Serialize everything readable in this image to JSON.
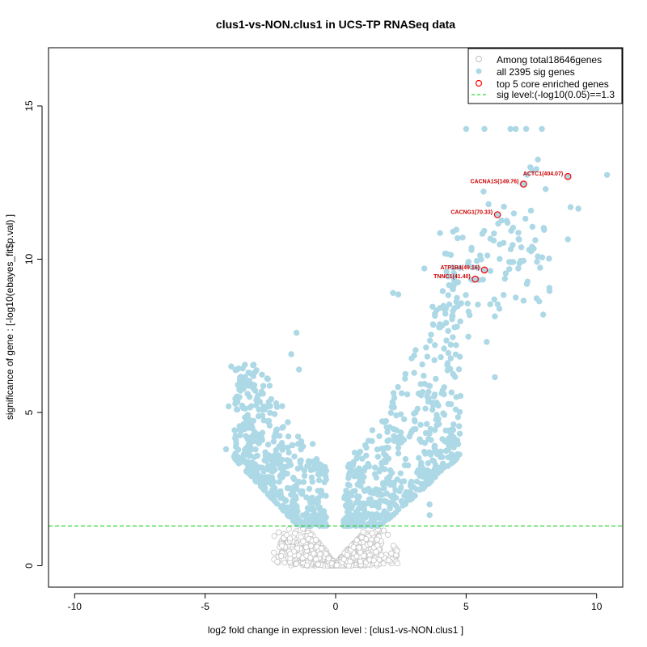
{
  "chart_data": {
    "type": "scatter",
    "title": "clus1-vs-NON.clus1 in UCS-TP RNASeq data",
    "xlabel": "log2 fold change in expression level : [clus1-vs-NON.clus1 ]",
    "ylabel": "significance of gene : [-log10(ebayes_fit$p.val) ]",
    "xlim": [
      -11,
      11
    ],
    "ylim": [
      -0.7,
      16.9
    ],
    "x_ticks": [
      -10,
      -5,
      0,
      5,
      10
    ],
    "y_ticks": [
      0,
      5,
      10,
      15
    ],
    "sig_level": 1.3,
    "legend_position": "top-right",
    "legend": [
      {
        "label": "Among total18646genes",
        "marker": "open-circle",
        "color": "#bebebe"
      },
      {
        "label": "all 2395 sig genes",
        "marker": "filled-circle",
        "color": "#add8e6"
      },
      {
        "label": "top 5 core enriched genes",
        "marker": "open-circle",
        "color": "#ff0000"
      },
      {
        "label": "sig level:(-log10(0.05)==1.3",
        "marker": "dashed-line",
        "color": "#00cc00"
      }
    ],
    "colors": {
      "nonsig": "#c8c8c8",
      "sig": "#add8e6",
      "top": "#ff0000",
      "sigline": "#00cc00",
      "annot": "#cc0000"
    },
    "top_genes": [
      {
        "label": "ACTC1(404.07)",
        "x": 8.9,
        "y": 12.7
      },
      {
        "label": "CACNA1S(149.76)",
        "x": 7.2,
        "y": 12.45
      },
      {
        "label": "CACNG1(70.33)",
        "x": 6.2,
        "y": 11.45
      },
      {
        "label": "ATP1B4(49.16)",
        "x": 5.7,
        "y": 9.65
      },
      {
        "label": "TNNC1(41.40)",
        "x": 5.35,
        "y": 9.35
      }
    ],
    "highlighted_sig_points": [
      {
        "x": 5.0,
        "y": 14.25
      },
      {
        "x": 5.7,
        "y": 14.25
      },
      {
        "x": 6.7,
        "y": 14.25
      },
      {
        "x": 6.9,
        "y": 14.25
      },
      {
        "x": 7.3,
        "y": 14.25
      },
      {
        "x": 7.9,
        "y": 14.25
      },
      {
        "x": 7.75,
        "y": 13.25
      },
      {
        "x": 10.4,
        "y": 12.75
      },
      {
        "x": 9.0,
        "y": 11.7
      },
      {
        "x": 9.3,
        "y": 11.65
      },
      {
        "x": 8.9,
        "y": 10.65
      },
      {
        "x": 6.1,
        "y": 6.15
      },
      {
        "x": -1.5,
        "y": 7.6
      },
      {
        "x": -1.7,
        "y": 6.9
      },
      {
        "x": -1.4,
        "y": 6.4
      },
      {
        "x": -4.0,
        "y": 6.5
      },
      {
        "x": -3.8,
        "y": 6.4
      },
      {
        "x": -4.1,
        "y": 5.2
      },
      {
        "x": -4.2,
        "y": 3.8
      },
      {
        "x": 2.2,
        "y": 8.9
      },
      {
        "x": 2.4,
        "y": 8.85
      },
      {
        "x": 3.4,
        "y": 9.7
      },
      {
        "x": 4.0,
        "y": 10.85
      },
      {
        "x": 4.5,
        "y": 10.9
      },
      {
        "x": 7.2,
        "y": 8.65
      },
      {
        "x": 7.0,
        "y": 9.7
      },
      {
        "x": 3.6,
        "y": 2.0
      },
      {
        "x": 3.6,
        "y": 1.65
      }
    ]
  }
}
